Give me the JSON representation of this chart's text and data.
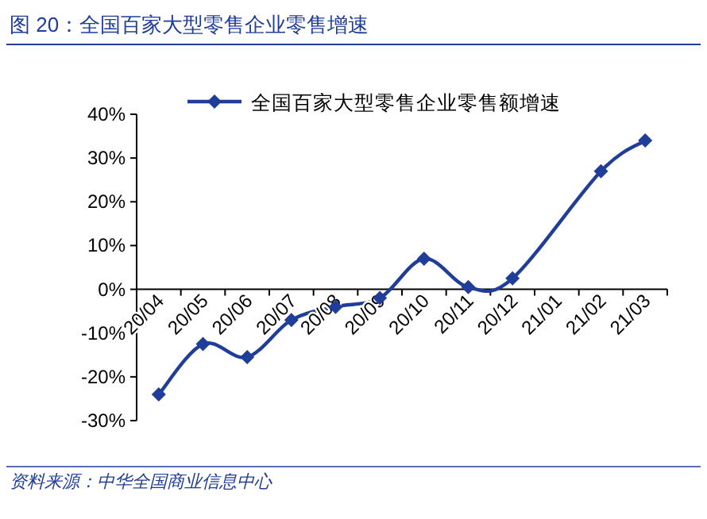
{
  "chart_data": {
    "type": "line",
    "title": "图 20：全国百家大型零售企业零售增速",
    "categories": [
      "20/04",
      "20/05",
      "20/06",
      "20/07",
      "20/08",
      "20/09",
      "20/10",
      "20/11",
      "20/12",
      "21/01",
      "21/02",
      "21/03"
    ],
    "series": [
      {
        "name": "全国百家大型零售企业零售额增速",
        "color": "#1f3d99",
        "values": [
          -24,
          -12.5,
          -15.5,
          -7,
          -4,
          -2,
          7,
          0.5,
          2.5,
          null,
          27,
          34
        ]
      }
    ],
    "ylim": [
      -30,
      40
    ],
    "yticks": [
      {
        "value": -30,
        "label": "-30%"
      },
      {
        "value": -20,
        "label": "-20%"
      },
      {
        "value": -10,
        "label": "-10%"
      },
      {
        "value": 0,
        "label": "0%"
      },
      {
        "value": 10,
        "label": "10%"
      },
      {
        "value": 20,
        "label": "20%"
      },
      {
        "value": 30,
        "label": "30%"
      },
      {
        "value": 40,
        "label": "40%"
      }
    ],
    "marker": "diamond",
    "legend": "top",
    "grid": false,
    "annotations": [
      "资料来源：中华全国商业信息中心"
    ]
  }
}
